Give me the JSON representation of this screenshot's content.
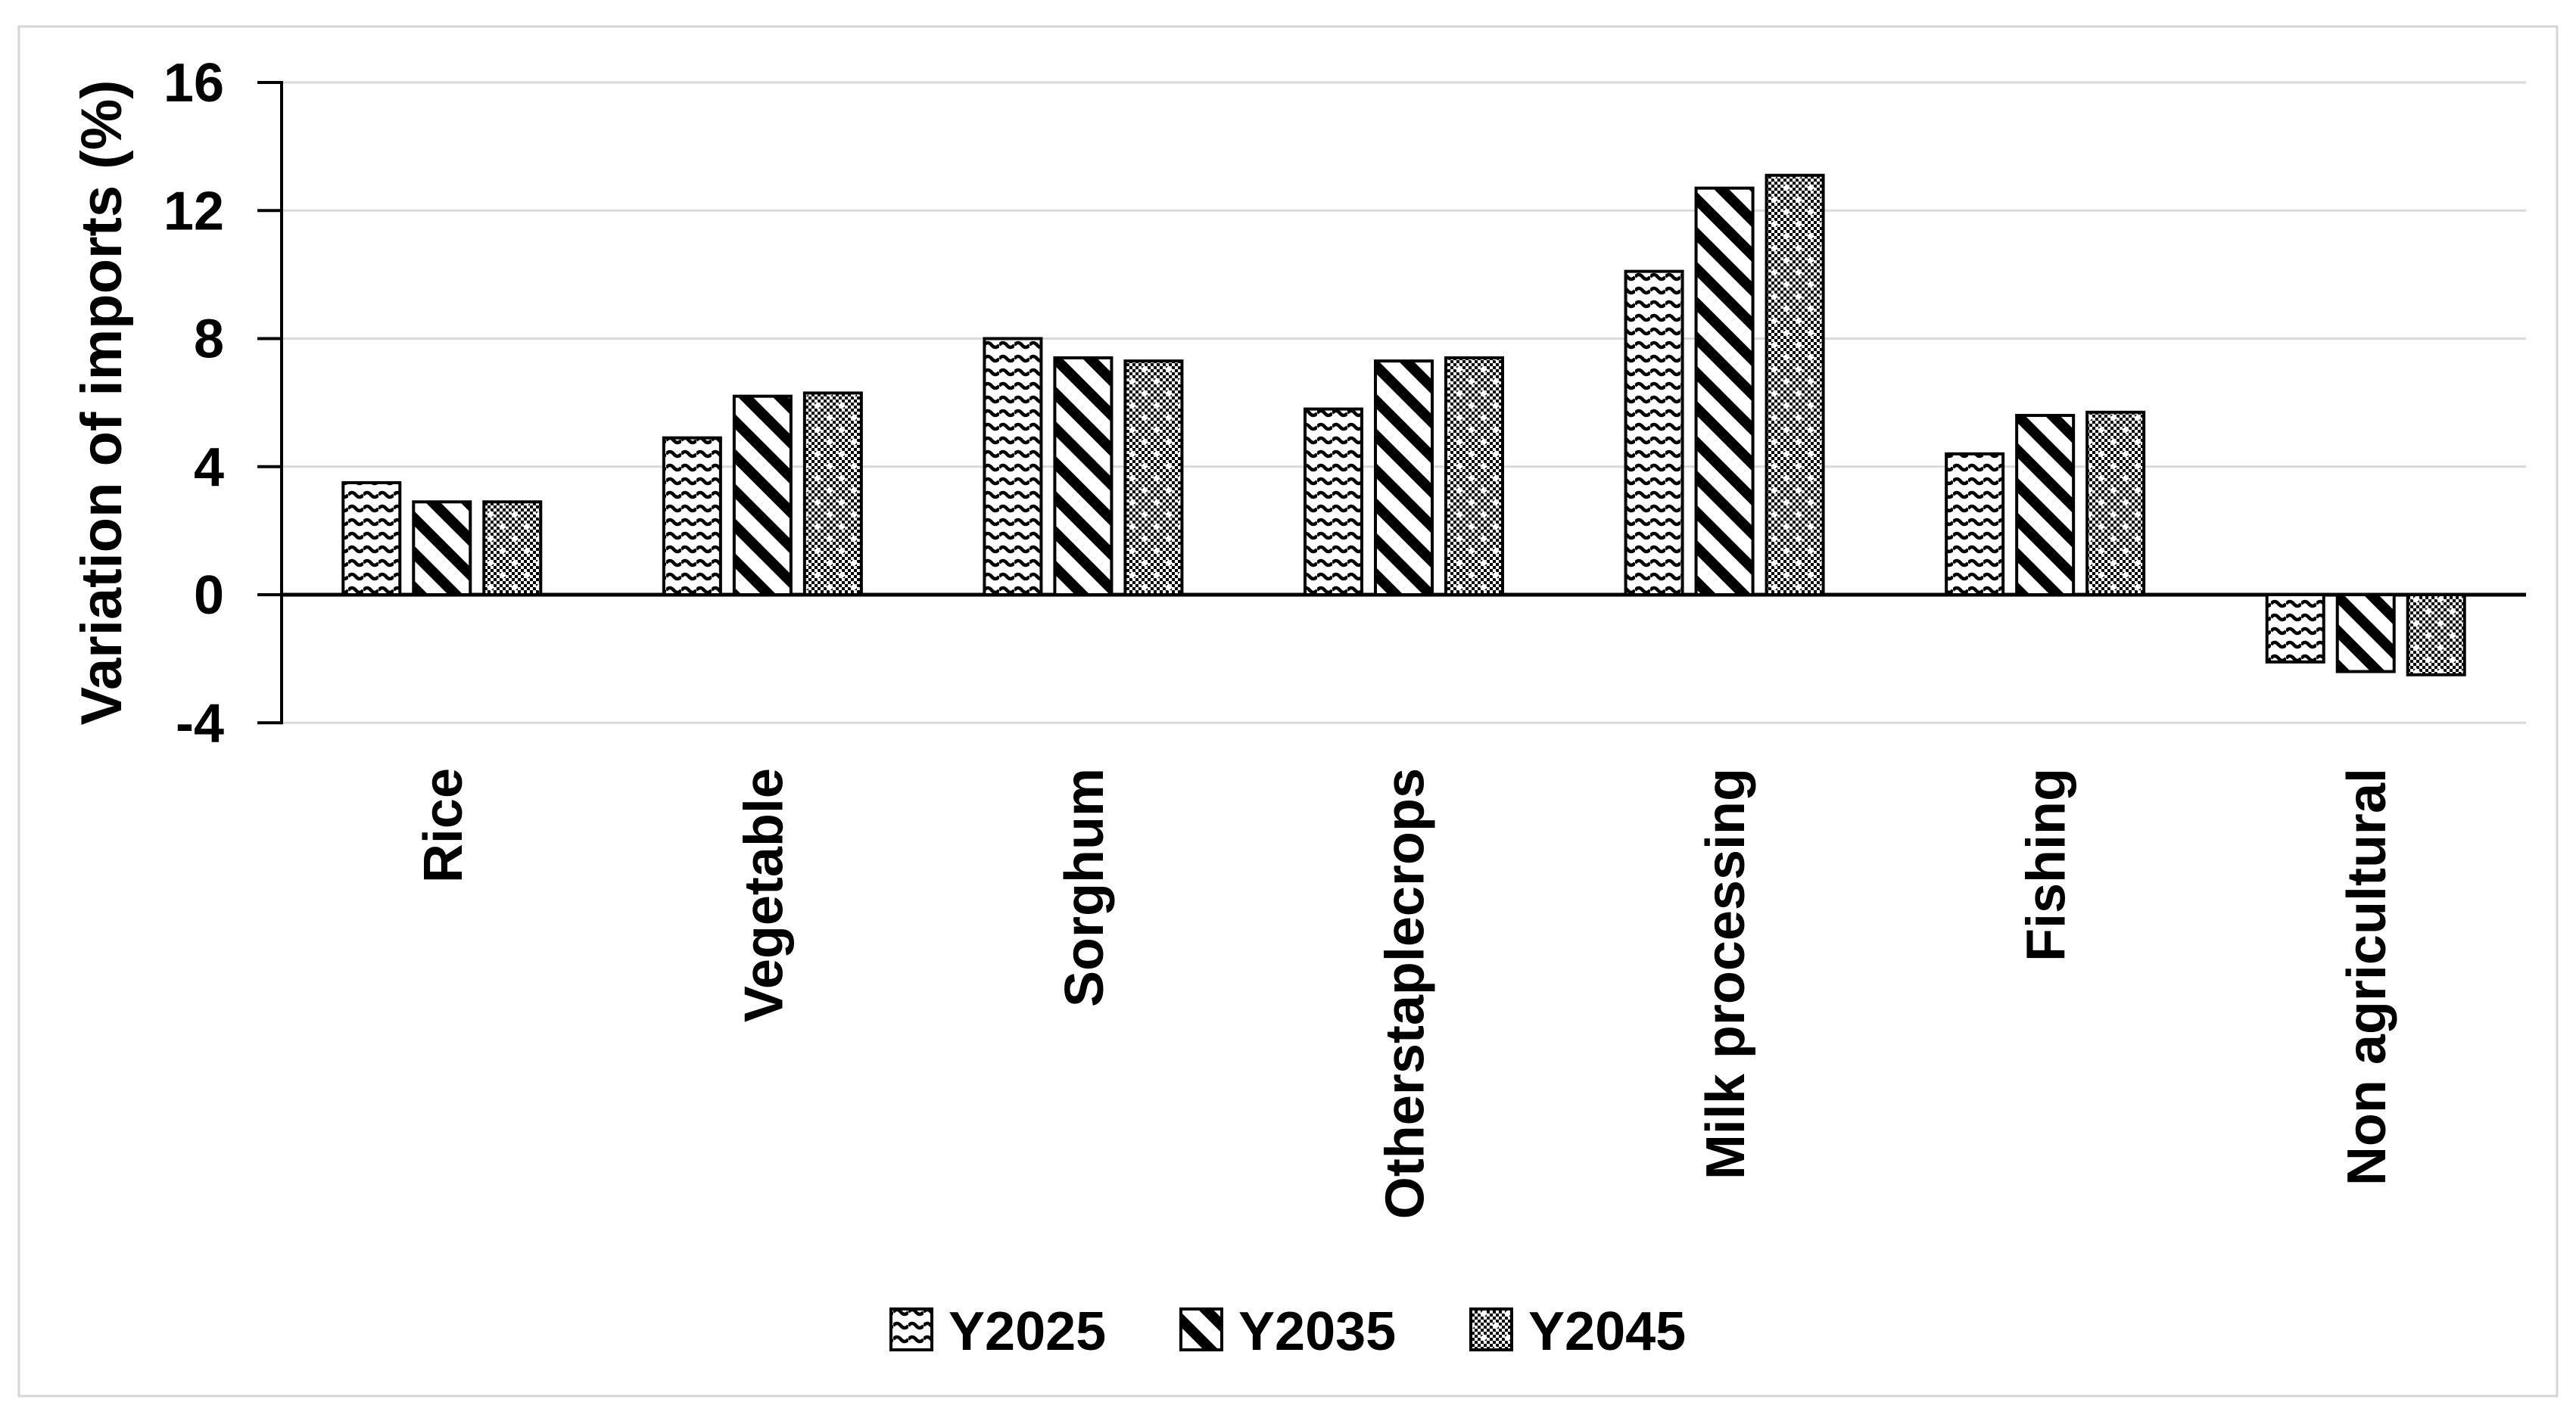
{
  "chart_data": {
    "type": "bar",
    "title": "",
    "ylabel": "Variation of imports (%)",
    "xlabel": "",
    "categories": [
      "Rice",
      "Vegetable",
      "Sorghum",
      "Otherstaplecrops",
      "Milk processing",
      "Fishing",
      "Non agricultural"
    ],
    "series": [
      {
        "name": "Y2025",
        "pattern": "wave",
        "values": [
          3.5,
          4.9,
          8.0,
          5.8,
          10.1,
          4.4,
          -2.1
        ]
      },
      {
        "name": "Y2035",
        "pattern": "diagonal-stripes",
        "values": [
          2.9,
          6.2,
          7.4,
          7.3,
          12.7,
          5.6,
          -2.4
        ]
      },
      {
        "name": "Y2045",
        "pattern": "checker",
        "values": [
          2.9,
          6.3,
          7.3,
          7.4,
          13.1,
          5.7,
          -2.5
        ]
      }
    ],
    "yticks": [
      16,
      12,
      8,
      4,
      0,
      -4
    ],
    "ylim": [
      -4,
      16
    ],
    "grid": "horizontal",
    "legend_position": "bottom-center",
    "colors": {
      "foreground": "#000000",
      "gridline": "#D9D9D9",
      "frame_border": "#D5D5D5",
      "background": "#FFFFFF"
    }
  }
}
